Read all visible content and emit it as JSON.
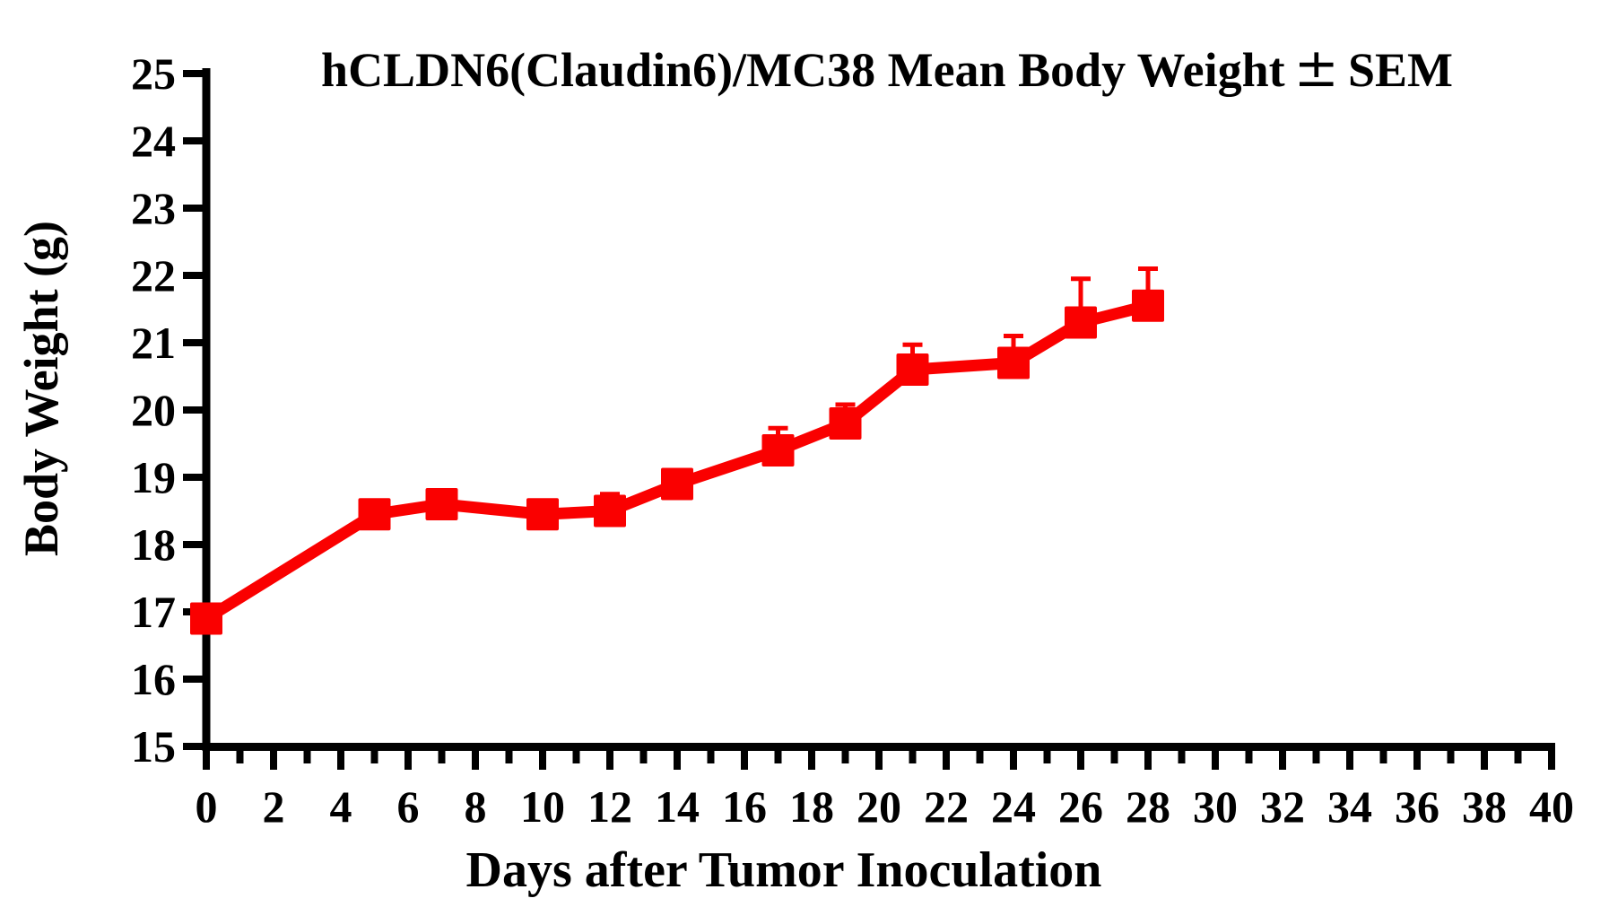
{
  "chart_data": {
    "type": "line",
    "title": "hCLDN6(Claudin6)/MC38 Mean Body Weight ± SEM",
    "title_parts": {
      "main": "hCLDN6(Claudin6)/MC38 Mean Body Weight",
      "pm": "±",
      "suffix": "SEM"
    },
    "xlabel": "Days after Tumor Inoculation",
    "ylabel": "Body Weight (g)",
    "xlim": [
      0,
      40
    ],
    "ylim": [
      15,
      25
    ],
    "grid": false,
    "legend": "none",
    "x_tick_labels": [
      0,
      2,
      4,
      6,
      8,
      10,
      12,
      14,
      16,
      18,
      20,
      22,
      24,
      26,
      28,
      30,
      32,
      34,
      36,
      38,
      40
    ],
    "x_minor_tick_step": 1,
    "y_tick_labels": [
      15,
      16,
      17,
      18,
      19,
      20,
      21,
      22,
      23,
      24,
      25
    ],
    "series": [
      {
        "name": "hCLDN6(Claudin6)/MC38 mean body weight",
        "color": "#FA0000",
        "marker": "square",
        "error_bars": "upper SEM only",
        "x": [
          0,
          5,
          7,
          10,
          12,
          14,
          17,
          19,
          21,
          24,
          26,
          28
        ],
        "y": [
          16.9,
          18.45,
          18.6,
          18.45,
          18.5,
          18.9,
          19.4,
          19.8,
          20.6,
          20.7,
          21.3,
          21.55
        ],
        "sem_upper": [
          0,
          0,
          0,
          0,
          0.25,
          0,
          0.33,
          0.28,
          0.37,
          0.4,
          0.65,
          0.55
        ]
      }
    ],
    "axis_color": "#000000"
  }
}
